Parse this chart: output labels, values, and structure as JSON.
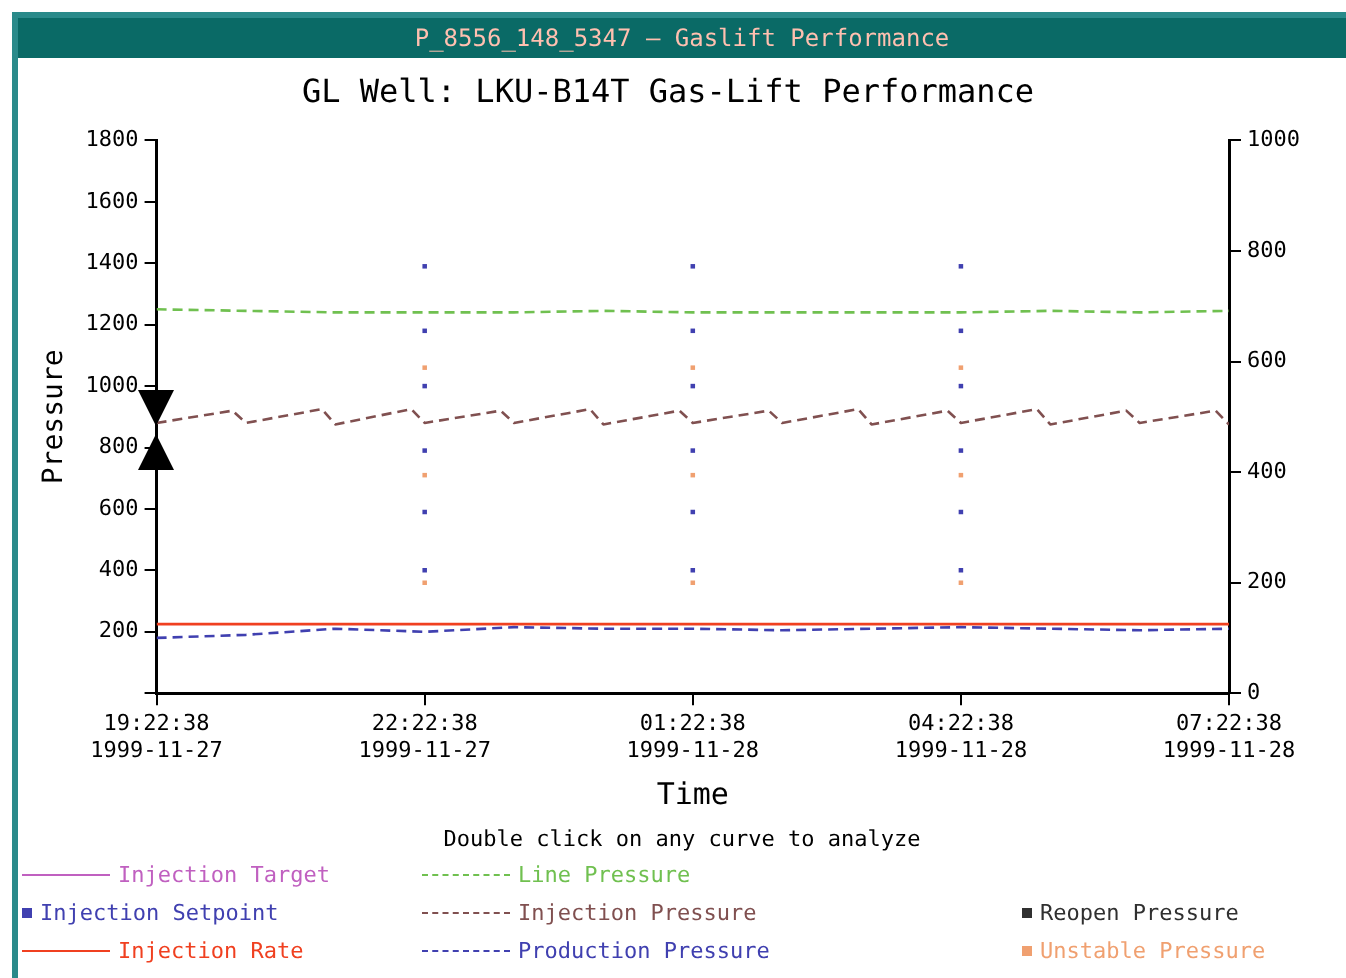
{
  "chart_data": {
    "type": "line",
    "title": "GL Well: LKU-B14T Gas-Lift Performance",
    "xlabel": "Time",
    "ylabel": "Pressure",
    "annotations": [
      "P_8556_148_5347 – Gaslift Performance",
      "Double click on any curve to analyze"
    ],
    "xlim": [
      "1999-11-27T19:22:38",
      "1999-11-28T07:22:38"
    ],
    "xticks": [
      {
        "value": "1999-11-27T19:22:38",
        "label": "19:22:38\n1999-11-27"
      },
      {
        "value": "1999-11-27T22:22:38",
        "label": "22:22:38\n1999-11-27"
      },
      {
        "value": "1999-11-28T01:22:38",
        "label": "01:22:38\n1999-11-28"
      },
      {
        "value": "1999-11-28T04:22:38",
        "label": "04:22:38\n1999-11-28"
      },
      {
        "value": "1999-11-28T07:22:38",
        "label": "07:22:38\n1999-11-28"
      }
    ],
    "ylim": [
      0,
      1800
    ],
    "yticks": [
      {
        "value": 0,
        "label": null
      },
      200,
      400,
      600,
      800,
      1000,
      1200,
      1400,
      1600,
      1800
    ],
    "y2lim": [
      0,
      1000
    ],
    "y2ticks": [
      0,
      200,
      400,
      600,
      800,
      1000
    ],
    "grid": false,
    "legend": "bottom",
    "marker": "none",
    "x": [
      "1999-11-27T19:22:38",
      "1999-11-27T20:22:38",
      "1999-11-27T21:22:38",
      "1999-11-27T22:22:38",
      "1999-11-27T23:22:38",
      "1999-11-28T00:22:38",
      "1999-11-28T01:22:38",
      "1999-11-28T02:22:38",
      "1999-11-28T03:22:38",
      "1999-11-28T04:22:38",
      "1999-11-28T05:22:38",
      "1999-11-28T06:22:38",
      "1999-11-28T07:22:38"
    ],
    "series": [
      {
        "name": "Injection Target",
        "color": "#c060c0",
        "line_style": "solid",
        "values": [
          null,
          null,
          null,
          null,
          null,
          null,
          null,
          null,
          null,
          null,
          null,
          null,
          null
        ]
      },
      {
        "name": "Injection Setpoint",
        "type": "scatter",
        "marker": "square",
        "color": "#4040b0",
        "x": [
          "1999-11-27T22:22:38",
          "1999-11-27T22:22:38",
          "1999-11-27T22:22:38",
          "1999-11-27T22:22:38",
          "1999-11-27T22:22:38",
          "1999-11-27T22:22:38",
          "1999-11-28T01:22:38",
          "1999-11-28T01:22:38",
          "1999-11-28T01:22:38",
          "1999-11-28T01:22:38",
          "1999-11-28T01:22:38",
          "1999-11-28T01:22:38",
          "1999-11-28T04:22:38",
          "1999-11-28T04:22:38",
          "1999-11-28T04:22:38",
          "1999-11-28T04:22:38",
          "1999-11-28T04:22:38",
          "1999-11-28T04:22:38"
        ],
        "values": [
          1390,
          1180,
          1000,
          790,
          590,
          400,
          1390,
          1180,
          1000,
          790,
          590,
          400,
          1390,
          1180,
          1000,
          790,
          590,
          400
        ]
      },
      {
        "name": "Injection Rate",
        "color": "#f04020",
        "line_style": "solid",
        "axis": "y2",
        "values": [
          125,
          125,
          125,
          125,
          125,
          125,
          125,
          125,
          125,
          125,
          125,
          125,
          125
        ]
      },
      {
        "name": "Line Pressure",
        "color": "#70c050",
        "line_style": "dashed",
        "values": [
          1250,
          1245,
          1240,
          1240,
          1240,
          1245,
          1240,
          1240,
          1240,
          1240,
          1245,
          1240,
          1245
        ]
      },
      {
        "name": "Injection Pressure",
        "color": "#805050",
        "line_style": "dashed",
        "x": [
          "1999-11-27T19:22:38",
          "1999-11-27T20:13:38",
          "1999-11-27T20:22:38",
          "1999-11-27T21:13:38",
          "1999-11-27T21:22:38",
          "1999-11-27T22:13:38",
          "1999-11-27T22:22:38",
          "1999-11-27T23:13:38",
          "1999-11-27T23:22:38",
          "1999-11-28T00:13:38",
          "1999-11-28T00:22:38",
          "1999-11-28T01:13:38",
          "1999-11-28T01:22:38",
          "1999-11-28T02:13:38",
          "1999-11-28T02:22:38",
          "1999-11-28T03:13:38",
          "1999-11-28T03:22:38",
          "1999-11-28T04:13:38",
          "1999-11-28T04:22:38",
          "1999-11-28T05:13:38",
          "1999-11-28T05:22:38",
          "1999-11-28T06:13:38",
          "1999-11-28T06:22:38",
          "1999-11-28T07:13:38",
          "1999-11-28T07:22:38"
        ],
        "values": [
          880,
          920,
          880,
          925,
          875,
          925,
          880,
          920,
          880,
          925,
          875,
          920,
          880,
          920,
          880,
          925,
          875,
          920,
          880,
          925,
          875,
          920,
          880,
          920,
          875
        ]
      },
      {
        "name": "Production Pressure",
        "color": "#4040b0",
        "line_style": "dashed",
        "values": [
          180,
          190,
          210,
          200,
          215,
          210,
          210,
          205,
          210,
          215,
          210,
          205,
          210
        ]
      },
      {
        "name": "Reopen Pressure",
        "color": "#303030",
        "type": "scatter",
        "marker": "square",
        "values": [
          null,
          null,
          null,
          null,
          null,
          null,
          null,
          null,
          null,
          null,
          null,
          null,
          null
        ]
      },
      {
        "name": "Unstable Pressure",
        "type": "scatter",
        "marker": "square",
        "color": "#f0a070",
        "x": [
          "1999-11-27T22:22:38",
          "1999-11-27T22:22:38",
          "1999-11-27T22:22:38",
          "1999-11-28T01:22:38",
          "1999-11-28T01:22:38",
          "1999-11-28T01:22:38",
          "1999-11-28T04:22:38",
          "1999-11-28T04:22:38",
          "1999-11-28T04:22:38"
        ],
        "values": [
          1060,
          710,
          360,
          1060,
          710,
          360,
          1060,
          710,
          360
        ]
      }
    ]
  }
}
